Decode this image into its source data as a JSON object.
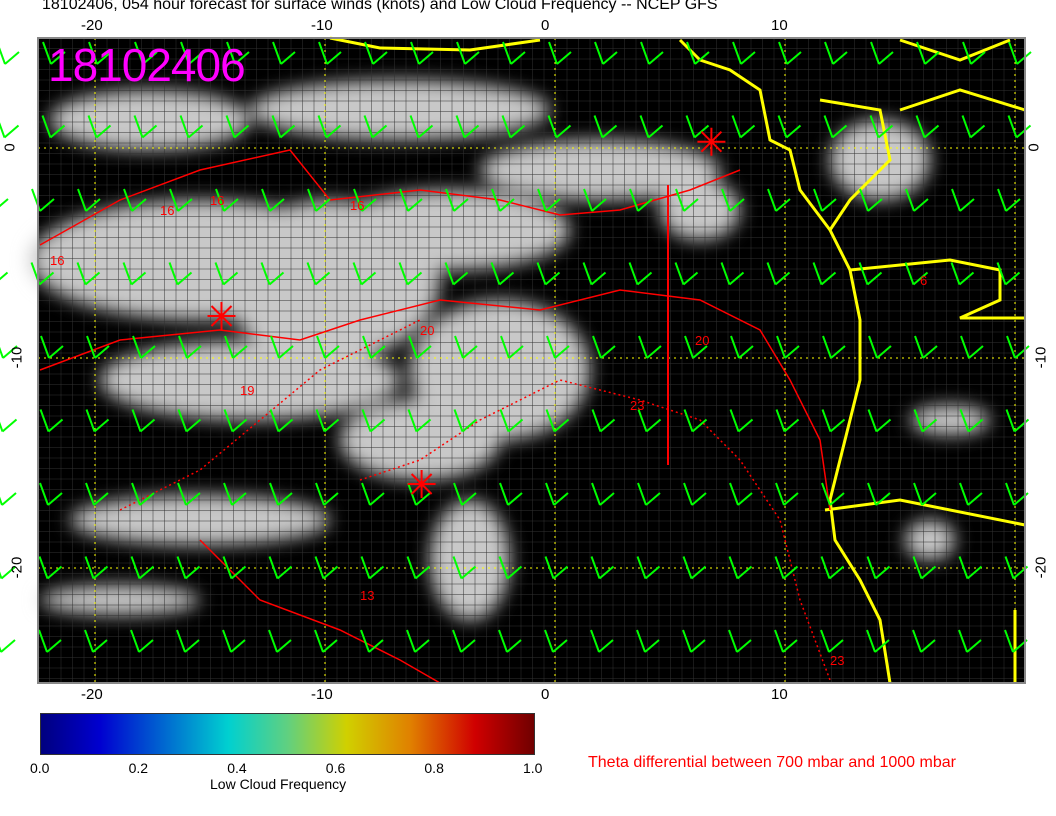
{
  "title": "18102406, 054 hour forecast for surface winds (knots) and Low Cloud Frequency -- NCEP GFS",
  "stamp": "18102406",
  "axes": {
    "lon_ticks": [
      "-20",
      "-10",
      "0",
      "10"
    ],
    "lat_ticks": [
      "0",
      "-10",
      "-20"
    ]
  },
  "contour_labels": [
    "16",
    "16",
    "16",
    "19",
    "20",
    "20",
    "23",
    "23",
    "13",
    "6",
    "16"
  ],
  "colorbar": {
    "label": "Low Cloud Frequency",
    "ticks": [
      "0.0",
      "0.2",
      "0.4",
      "0.6",
      "0.8",
      "1.0"
    ],
    "range": [
      0,
      1
    ]
  },
  "theta_note": "Theta differential between 700 mbar and 1000 mbar",
  "colors": {
    "background": "#000000",
    "clouds": "#d0d0d0",
    "wind_barbs": "#00ff00",
    "coastline": "#ffff00",
    "contours": "#ff0000",
    "stamp": "#ff00ff",
    "grid": "#ffff00"
  },
  "markers": [
    {
      "type": "star",
      "lon": -14.5,
      "lat": -8
    },
    {
      "type": "star",
      "lon": -5.8,
      "lat": -16
    },
    {
      "type": "star",
      "lon": 6.8,
      "lat": 0.3
    }
  ]
}
